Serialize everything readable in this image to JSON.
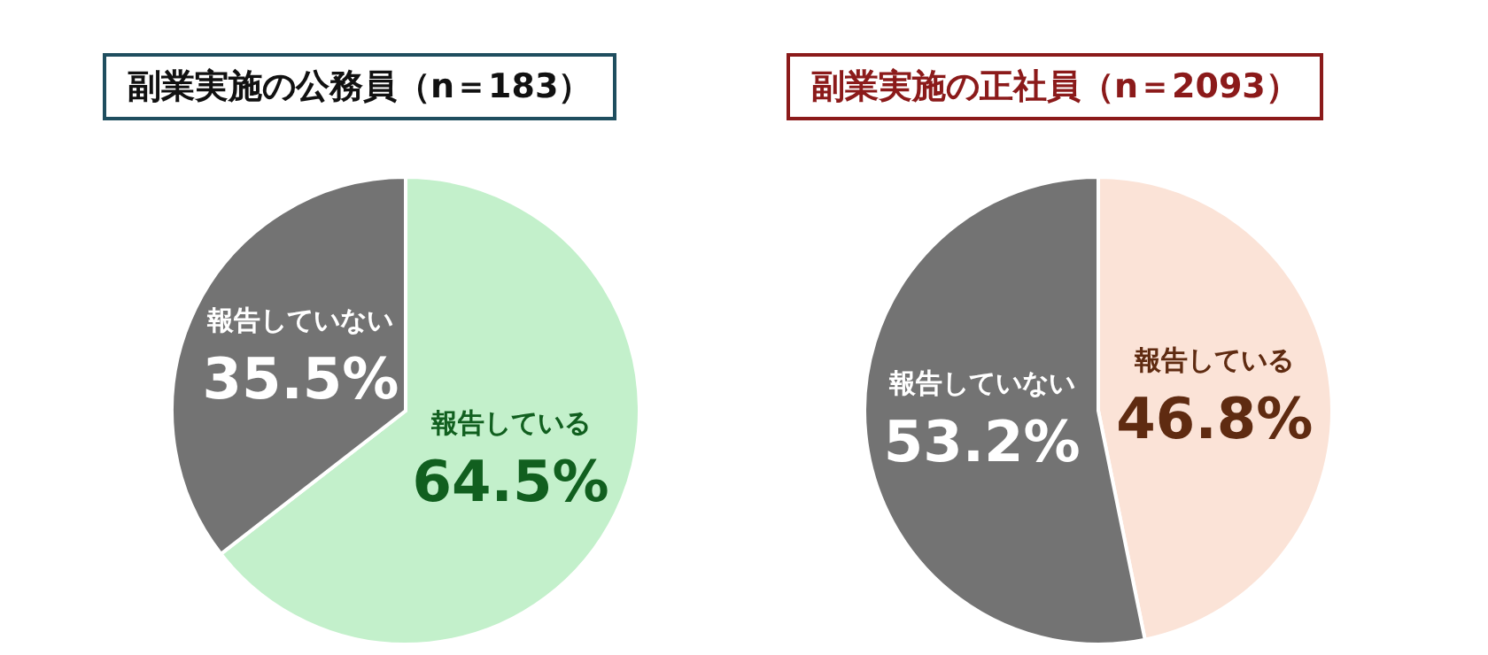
{
  "chart_data": [
    {
      "type": "pie",
      "title": "副業実施の公務員（n＝183）",
      "categories": [
        "報告している",
        "報告していない"
      ],
      "values": [
        64.5,
        35.5
      ],
      "colors": [
        "#c3f0cb",
        "#737373"
      ],
      "value_labels": [
        "64.5%",
        "35.5%"
      ]
    },
    {
      "type": "pie",
      "title": "副業実施の正社員（n＝2093）",
      "categories": [
        "報告している",
        "報告していない"
      ],
      "values": [
        46.8,
        53.2
      ],
      "colors": [
        "#fbe3d7",
        "#737373"
      ],
      "value_labels": [
        "46.8%",
        "53.2%"
      ]
    }
  ]
}
